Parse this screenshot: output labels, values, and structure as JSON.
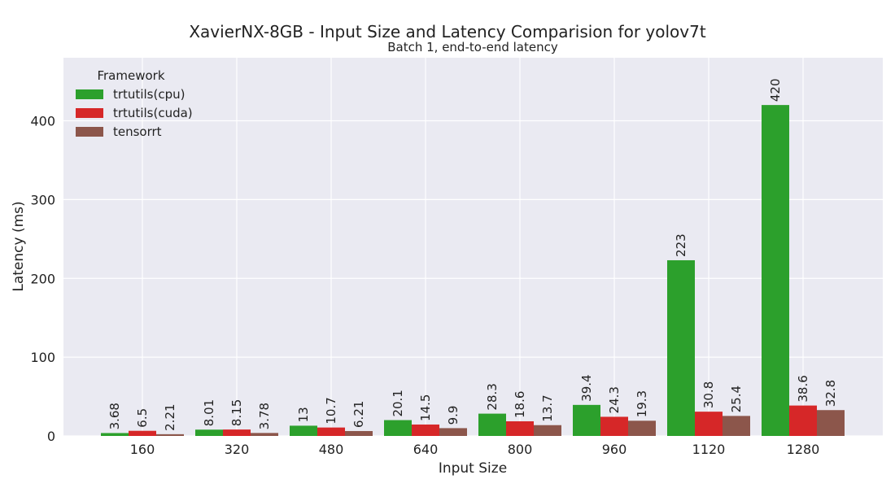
{
  "chart_data": {
    "type": "bar",
    "title": "XavierNX-8GB - Input Size and Latency Comparision for yolov7t",
    "subtitle": "Batch 1, end-to-end latency",
    "xlabel": "Input Size",
    "ylabel": "Latency (ms)",
    "ylim": [
      0,
      480
    ],
    "yticks": [
      "0",
      "100",
      "200",
      "300",
      "400"
    ],
    "grid": true,
    "legend": {
      "title": "Framework",
      "placement": "top-left"
    },
    "categories": [
      "160",
      "320",
      "480",
      "640",
      "800",
      "960",
      "1120",
      "1280"
    ],
    "series": [
      {
        "name": "trtutils(cpu)",
        "color": "#2ca02c",
        "values": [
          3.68,
          8.01,
          13,
          20.1,
          28.3,
          39.4,
          223,
          420
        ],
        "labels": [
          "3.68",
          "8.01",
          "13",
          "20.1",
          "28.3",
          "39.4",
          "223",
          "420"
        ]
      },
      {
        "name": "trtutils(cuda)",
        "color": "#d62728",
        "values": [
          6.5,
          8.15,
          10.7,
          14.5,
          18.6,
          24.3,
          30.8,
          38.6
        ],
        "labels": [
          "6.5",
          "8.15",
          "10.7",
          "14.5",
          "18.6",
          "24.3",
          "30.8",
          "38.6"
        ]
      },
      {
        "name": "tensorrt",
        "color": "#8c564b",
        "values": [
          2.21,
          3.78,
          6.21,
          9.9,
          13.7,
          19.3,
          25.4,
          32.8
        ],
        "labels": [
          "2.21",
          "3.78",
          "6.21",
          "9.9",
          "13.7",
          "19.3",
          "25.4",
          "32.8"
        ]
      }
    ]
  }
}
